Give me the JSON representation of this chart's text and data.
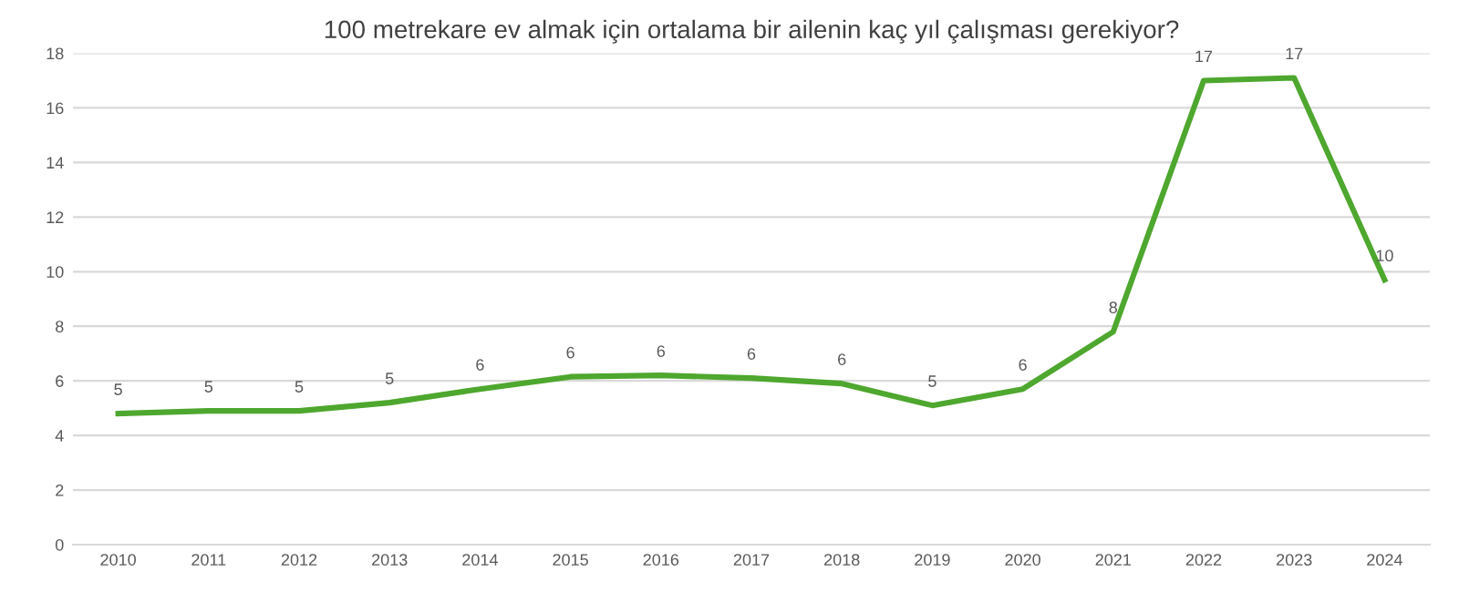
{
  "chart_data": {
    "type": "line",
    "title": "100 metrekare ev almak için ortalama bir ailenin kaç yıl çalışması gerekiyor?",
    "categories": [
      "2010",
      "2011",
      "2012",
      "2013",
      "2014",
      "2015",
      "2016",
      "2017",
      "2018",
      "2019",
      "2020",
      "2021",
      "2022",
      "2023",
      "2024"
    ],
    "series": [
      {
        "color": "#4ea72e",
        "values": [
          4.8,
          4.9,
          4.9,
          5.2,
          5.7,
          6.15,
          6.2,
          6.1,
          5.9,
          5.1,
          5.7,
          7.8,
          17.0,
          17.1,
          9.7
        ],
        "value_labels": [
          "5",
          "5",
          "5",
          "5",
          "6",
          "6",
          "6",
          "6",
          "6",
          "5",
          "6",
          "8",
          "17",
          "17",
          "10"
        ]
      }
    ],
    "ylim": [
      0,
      18
    ],
    "yticks": [
      0,
      2,
      4,
      6,
      8,
      10,
      12,
      14,
      16,
      18
    ],
    "grid": "y",
    "marker": "none",
    "line_style": "solid"
  }
}
